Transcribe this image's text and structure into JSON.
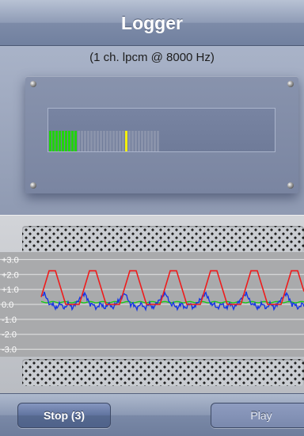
{
  "navbar": {
    "title": "Logger"
  },
  "panel": {
    "format_label": "(1 ch. lpcm @ 8000 Hz)"
  },
  "meter": {
    "level_fraction": 0.26,
    "peak_fraction": 0.68,
    "colors": {
      "active": "#22d40a",
      "inactive": "#8a93ab",
      "peak": "#f5f10c"
    }
  },
  "scope": {
    "y_tick_labels": [
      "+3.0",
      "+2.0",
      "+1.0",
      "0.0",
      "-1.0",
      "-2.0",
      "-3.0"
    ],
    "ylim": [
      -3.5,
      3.5
    ],
    "series_colors": {
      "red": "#ee1c1c",
      "blue": "#1535e6",
      "green": "#19c919"
    }
  },
  "toolbar": {
    "stop_label": "Stop (3)",
    "play_label": "Play"
  }
}
